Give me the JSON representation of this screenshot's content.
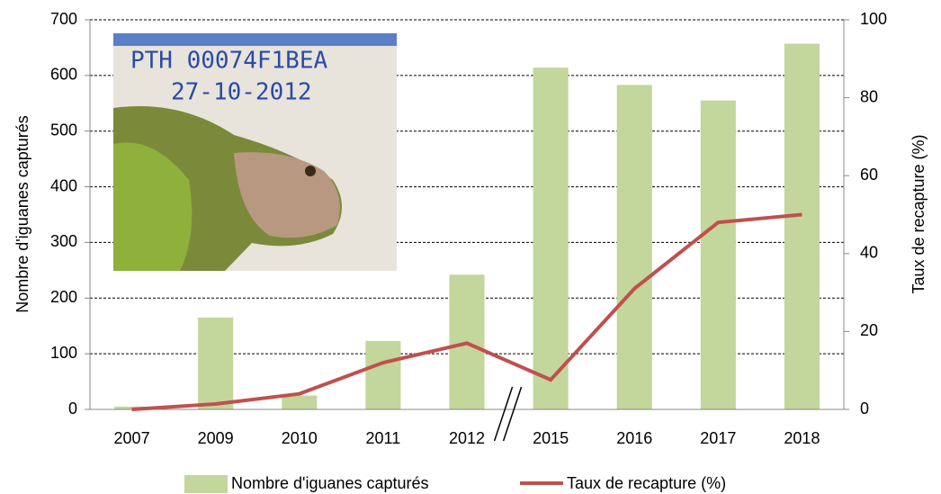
{
  "chart_data": {
    "type": "bar_line",
    "categories": [
      "2007",
      "2009",
      "2010",
      "2011",
      "2012",
      "2015",
      "2016",
      "2017",
      "2018"
    ],
    "series": [
      {
        "name": "Nombre d'iguanes capturés",
        "type": "bar",
        "color": "#c3d69b",
        "values": [
          5,
          165,
          25,
          123,
          242,
          614,
          583,
          555,
          657
        ]
      },
      {
        "name": "Taux de recapture (%)",
        "type": "line",
        "axis": "y2",
        "color": "#c0504d",
        "values": [
          0,
          1.4,
          4,
          12,
          17,
          7.6,
          31,
          48,
          50
        ]
      }
    ],
    "ylabel": "Nombre d'iguanes capturés",
    "y2label": "Taux de recapture (%)",
    "ylim": [
      0,
      700
    ],
    "yticks": [
      0,
      100,
      200,
      300,
      400,
      500,
      600,
      700
    ],
    "y2lim": [
      0,
      100
    ],
    "y2ticks": [
      0,
      20,
      40,
      60,
      80,
      100
    ],
    "grid": true,
    "legend": "bottom",
    "photo_text": [
      "PTH 00074F1BEA",
      "27-10-2012"
    ]
  }
}
